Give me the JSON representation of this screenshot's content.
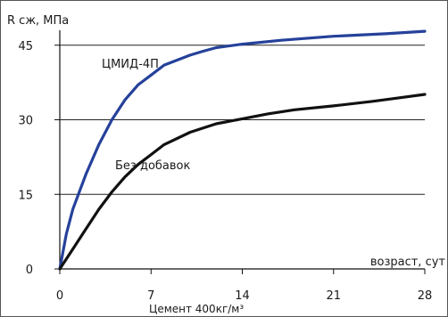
{
  "chart_data": {
    "type": "line",
    "ylabel": "R сж, МПа",
    "xlabel": "возраст, сут",
    "caption": "Цемент 400кг/м³",
    "xlim": [
      0,
      28
    ],
    "ylim": [
      0,
      48
    ],
    "x_ticks": [
      0,
      7,
      14,
      21,
      28
    ],
    "y_ticks": [
      0,
      15,
      30,
      45
    ],
    "grid": "horizontal",
    "series": [
      {
        "name": "ЦМИД-4П",
        "color": "#25419a",
        "points": [
          [
            0,
            0
          ],
          [
            0.5,
            7
          ],
          [
            1,
            12
          ],
          [
            2,
            19
          ],
          [
            3,
            25
          ],
          [
            4,
            30
          ],
          [
            5,
            34
          ],
          [
            5.5,
            35.5
          ],
          [
            6,
            37
          ],
          [
            7,
            39
          ],
          [
            8,
            41
          ],
          [
            9,
            42
          ],
          [
            10,
            43
          ],
          [
            11,
            43.8
          ],
          [
            12,
            44.5
          ],
          [
            14,
            45.2
          ],
          [
            17,
            46
          ],
          [
            21,
            46.8
          ],
          [
            25,
            47.3
          ],
          [
            28,
            47.8
          ]
        ]
      },
      {
        "name": "Без добавок",
        "color": "#111111",
        "points": [
          [
            0,
            0
          ],
          [
            1,
            4
          ],
          [
            2,
            8
          ],
          [
            3,
            12
          ],
          [
            4,
            15.5
          ],
          [
            5,
            18.5
          ],
          [
            6,
            21
          ],
          [
            7,
            23
          ],
          [
            8,
            25
          ],
          [
            10,
            27.5
          ],
          [
            12,
            29.2
          ],
          [
            14,
            30.2
          ],
          [
            16,
            31.2
          ],
          [
            18,
            32
          ],
          [
            21,
            32.8
          ],
          [
            24,
            33.7
          ],
          [
            26,
            34.4
          ],
          [
            28,
            35.1
          ]
        ]
      }
    ]
  }
}
